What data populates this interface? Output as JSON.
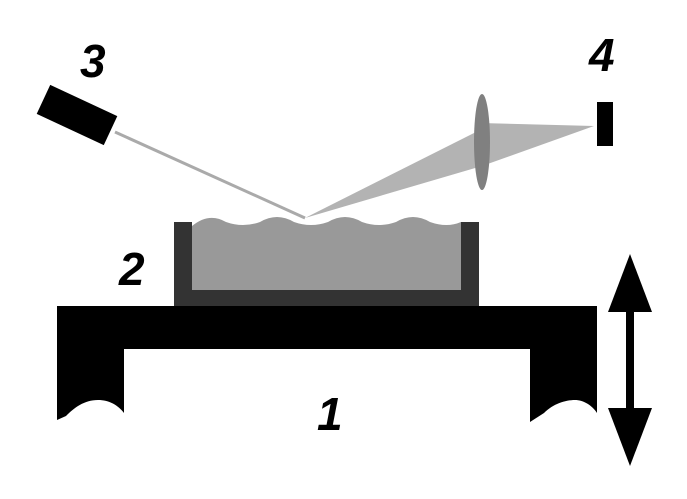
{
  "labels": {
    "table": "1",
    "sample": "2",
    "laser": "3",
    "detector": "4"
  },
  "colors": {
    "background": "#ffffff",
    "table": "#000000",
    "dish_wall": "#333333",
    "liquid": "#999999",
    "beam": "#b3b3b3",
    "laser_ray": "#aaaaaa",
    "lens": "#808080",
    "detector": "#000000",
    "arrow": "#000000"
  },
  "icons": {
    "laser": "laser-source-icon",
    "detector": "photodetector-icon",
    "lens": "convex-lens-icon",
    "motion": "vertical-double-arrow-icon"
  }
}
